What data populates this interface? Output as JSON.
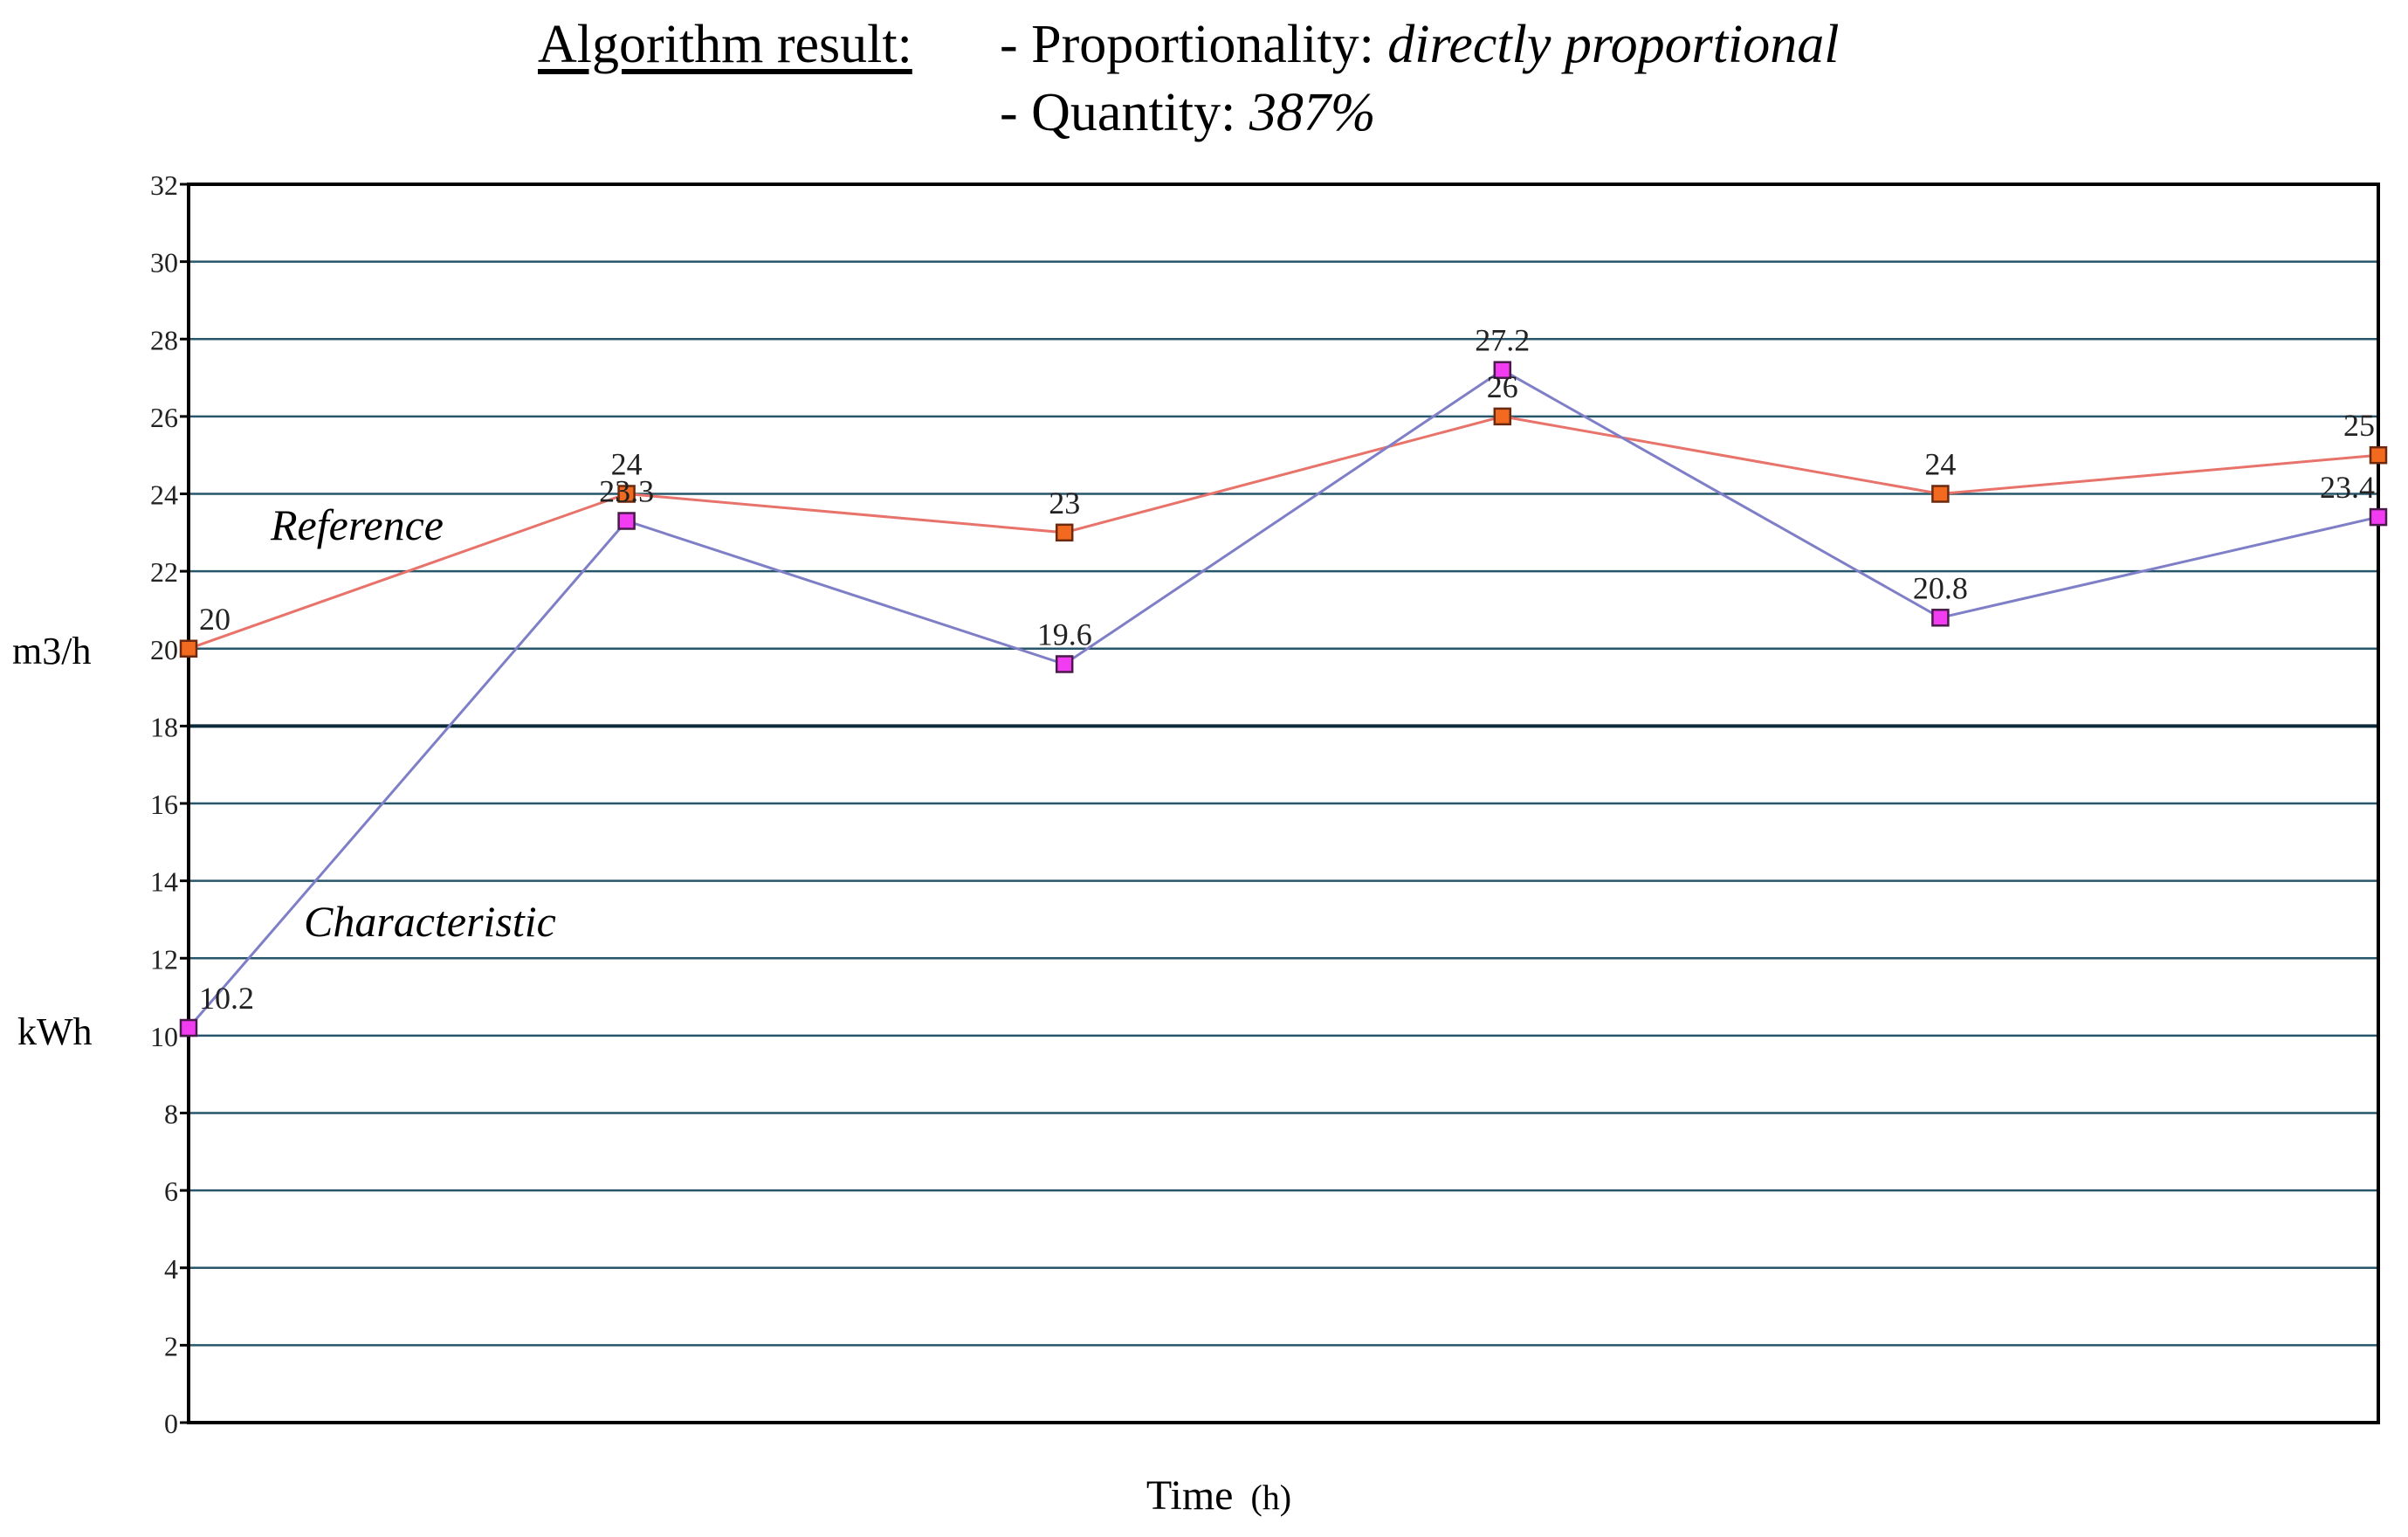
{
  "header": {
    "label": "Algorithm result:",
    "line1_prefix": "- Proportionality: ",
    "line1_value": "directly proportional",
    "line2_prefix": "- Quantity: ",
    "line2_value": "387%"
  },
  "chart_data": {
    "type": "line",
    "x": [
      0,
      1,
      2,
      3,
      4,
      5
    ],
    "xlabel_main": "Time",
    "xlabel_unit": "(h)",
    "ylabel_top": "m3/h",
    "ylabel_bottom": "kWh",
    "ylim": [
      0,
      32
    ],
    "ytick_step": 2,
    "yticks": [
      "0",
      "2",
      "4",
      "6",
      "8",
      "10",
      "12",
      "14",
      "16",
      "18",
      "20",
      "22",
      "24",
      "26",
      "28",
      "30",
      "32"
    ],
    "grid": true,
    "series": [
      {
        "name": "Reference",
        "values": [
          20,
          24,
          23,
          26,
          24,
          25
        ],
        "labels": [
          "20",
          "24",
          "23",
          "26",
          "24",
          "25"
        ],
        "line_color": "#e8736b",
        "marker_fill": "#f26a1f",
        "marker_stroke": "#6b2a10"
      },
      {
        "name": "Characteristic",
        "values": [
          10.2,
          23.3,
          19.6,
          27.2,
          20.8,
          23.4
        ],
        "labels": [
          "10.2",
          "23.3",
          "19.6",
          "27.2",
          "20.8",
          "23.4"
        ],
        "line_color": "#7f7fc8",
        "marker_fill": "#f23cf2",
        "marker_stroke": "#4a1a4a"
      }
    ]
  }
}
